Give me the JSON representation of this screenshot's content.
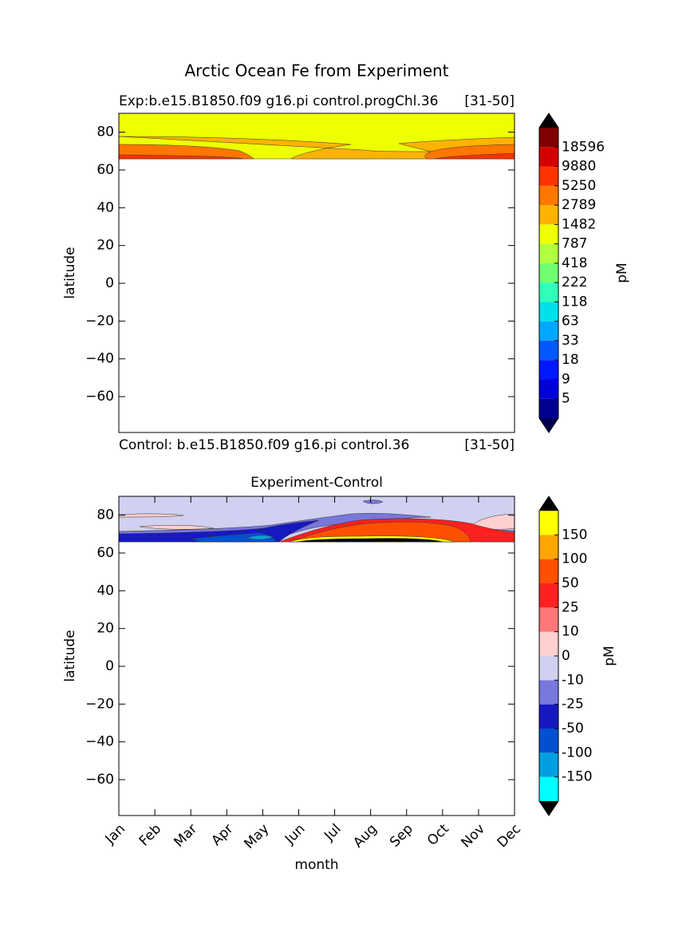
{
  "title": "Arctic Ocean Fe from Experiment",
  "chart_data": [
    {
      "type": "contour",
      "title_left": "Exp:b.e15.B1850.f09 g16.pi control.progChl.36",
      "title_right": "[31-50]",
      "note_left": "Control: b.e15.B1850.f09 g16.pi control.36",
      "note_right": "[31-50]",
      "ylabel": "latitude",
      "xlim": [
        0,
        11
      ],
      "ylim": [
        -79,
        90
      ],
      "yticks": [
        {
          "value": -60,
          "label": "−60"
        },
        {
          "value": -40,
          "label": "−40"
        },
        {
          "value": -20,
          "label": "−20"
        },
        0,
        20,
        40,
        60,
        80
      ],
      "colorbar": {
        "label": "pM",
        "levels": [
          5,
          9,
          18,
          33,
          63,
          118,
          222,
          418,
          787,
          1482,
          2789,
          5250,
          9880,
          18596
        ],
        "colors": [
          "#000090",
          "#0000d8",
          "#0018ff",
          "#0058ff",
          "#00a8ff",
          "#00e0e8",
          "#30ffb8",
          "#70ff70",
          "#b0ff40",
          "#eeff00",
          "#ffb300",
          "#ff7700",
          "#ff3300",
          "#d40000",
          "#800000"
        ],
        "under_color": "#000050",
        "over_color": "#000000"
      }
    },
    {
      "type": "contour",
      "title": "Experiment-Control",
      "xlabel": "month",
      "ylabel": "latitude",
      "xlim": [
        0,
        11
      ],
      "ylim": [
        -79,
        90
      ],
      "xticks": [
        {
          "value": 0,
          "label": "Jan"
        },
        {
          "value": 1,
          "label": "Feb"
        },
        {
          "value": 2,
          "label": "Mar"
        },
        {
          "value": 3,
          "label": "Apr"
        },
        {
          "value": 4,
          "label": "May"
        },
        {
          "value": 5,
          "label": "Jun"
        },
        {
          "value": 6,
          "label": "Jul"
        },
        {
          "value": 7,
          "label": "Aug"
        },
        {
          "value": 8,
          "label": "Sep"
        },
        {
          "value": 9,
          "label": "Oct"
        },
        {
          "value": 10,
          "label": "Nov"
        },
        {
          "value": 11,
          "label": "Dec"
        }
      ],
      "yticks": [
        {
          "value": -60,
          "label": "−60"
        },
        {
          "value": -40,
          "label": "−40"
        },
        {
          "value": -20,
          "label": "−20"
        },
        0,
        20,
        40,
        60,
        80
      ],
      "colorbar": {
        "label": "pM",
        "levels": [
          -150,
          -100,
          -50,
          -25,
          -10,
          0,
          10,
          25,
          50,
          100,
          150
        ],
        "colors": [
          "#00ffff",
          "#00a0e0",
          "#0050d0",
          "#1818c0",
          "#7777dd",
          "#d0d0f0",
          "#ffd0d0",
          "#ff7777",
          "#ff2020",
          "#ff5000",
          "#ffa500",
          "#ffff00"
        ],
        "under_color": "#000000",
        "over_color": "#000000"
      }
    }
  ]
}
